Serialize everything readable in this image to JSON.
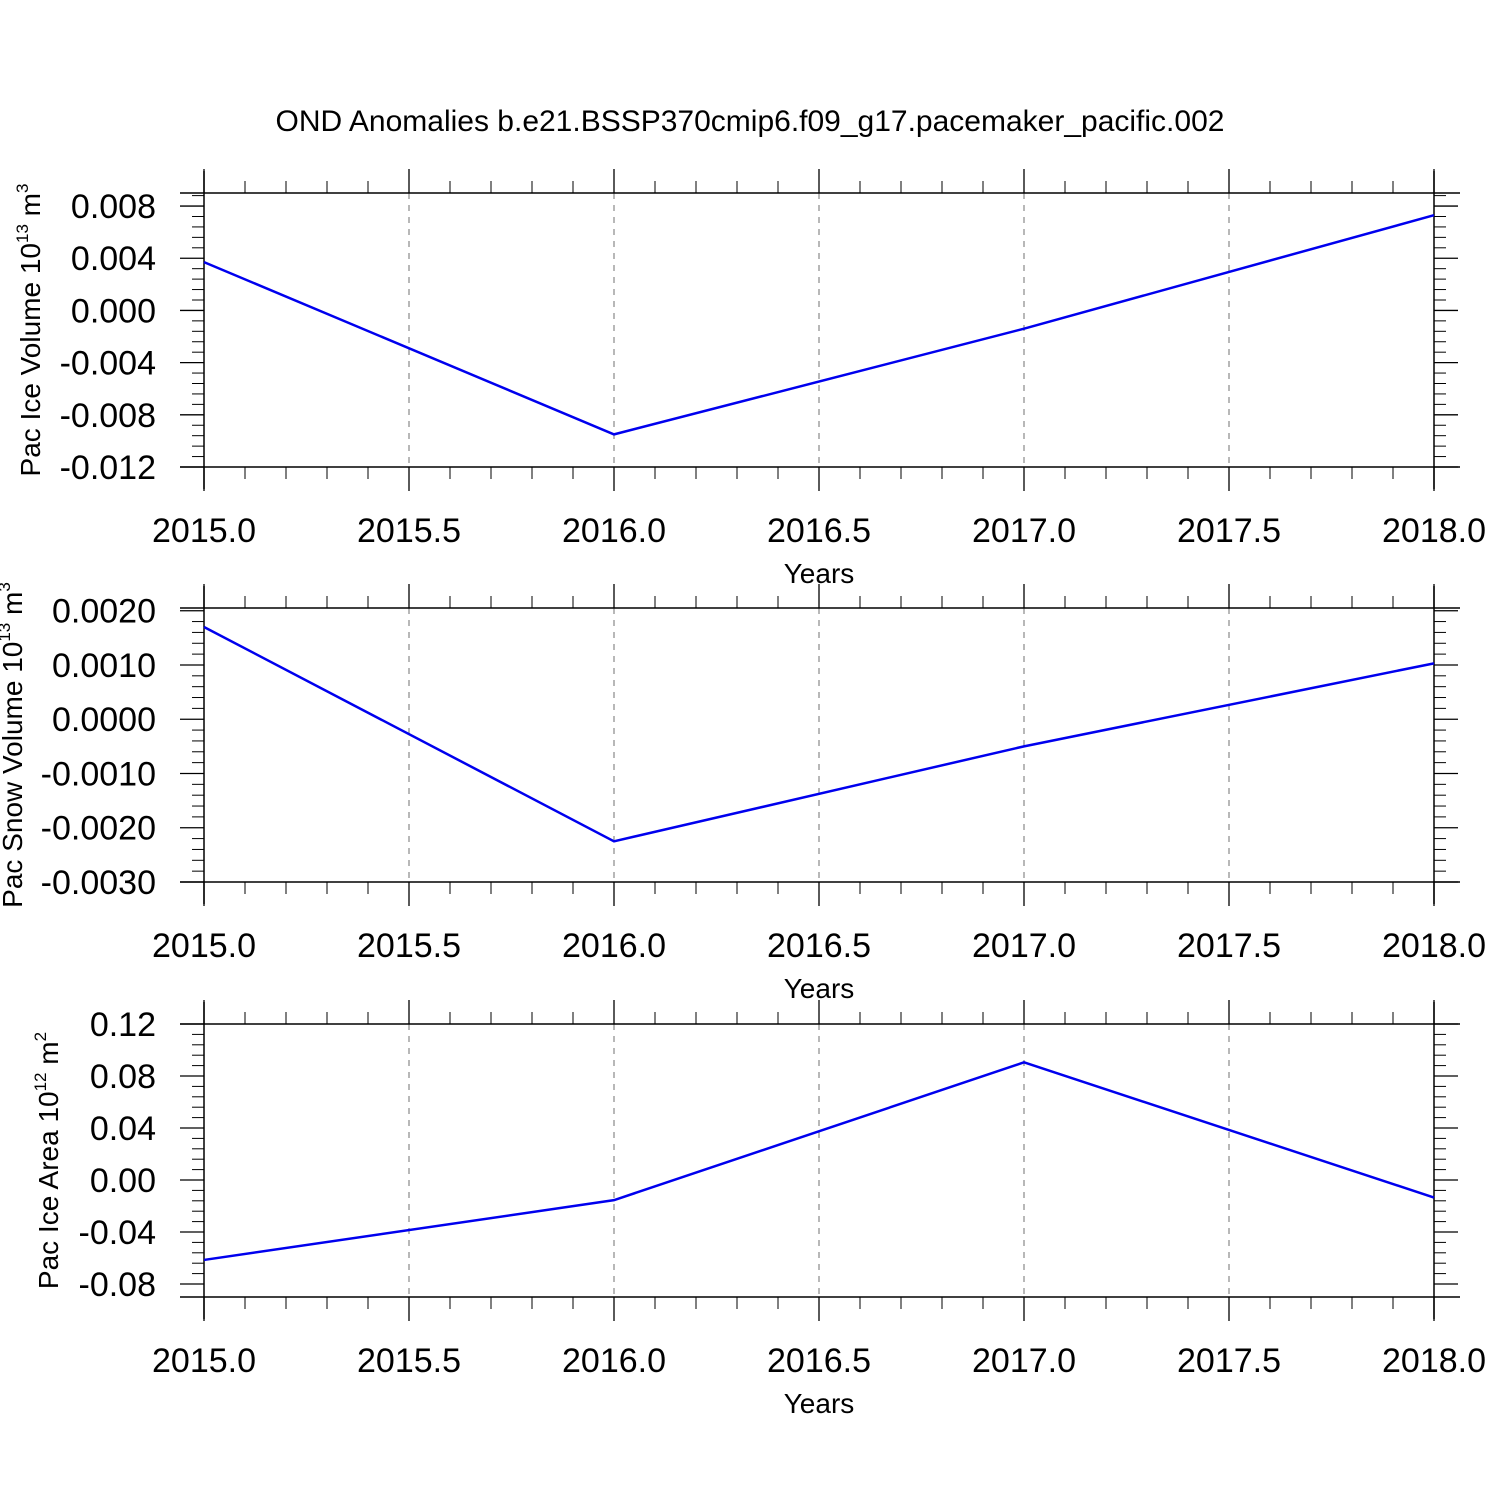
{
  "title": "OND Anomalies b.e21.BSSP370cmip6.f09_g17.pacemaker_pacific.002",
  "line_color": "#0000ee",
  "chart_data": [
    {
      "type": "line",
      "ylabel": {
        "text": "Pac Ice Volume 10",
        "exp": "13",
        "unit": " m",
        "unit_exp": "3"
      },
      "xlabel": "Years",
      "x": [
        2015,
        2016,
        2017,
        2018
      ],
      "series": [
        {
          "values": [
            0.0037,
            -0.0095,
            -0.0014,
            0.0073
          ]
        }
      ],
      "xlim": [
        2015.0,
        2018.0
      ],
      "ylim": [
        -0.012,
        0.009
      ],
      "xticks": [
        "2015.0",
        "2015.5",
        "2016.0",
        "2016.5",
        "2017.0",
        "2017.5",
        "2018.0"
      ],
      "yticks": [
        "0.008",
        "0.004",
        "0.000",
        "-0.004",
        "-0.008",
        "-0.012"
      ],
      "ytick_values": [
        0.008,
        0.004,
        0.0,
        -0.004,
        -0.008,
        -0.012
      ],
      "grid": "vertical dashed"
    },
    {
      "type": "line",
      "ylabel": {
        "text": "Pac Snow Volume 10",
        "exp": "13",
        "unit": " m",
        "unit_exp": "3"
      },
      "xlabel": "Years",
      "x": [
        2015,
        2016,
        2017,
        2018
      ],
      "series": [
        {
          "values": [
            0.0017,
            -0.00225,
            -0.0005,
            0.00103
          ]
        }
      ],
      "xlim": [
        2015.0,
        2018.0
      ],
      "ylim": [
        -0.003,
        0.00205
      ],
      "xticks": [
        "2015.0",
        "2015.5",
        "2016.0",
        "2016.5",
        "2017.0",
        "2017.5",
        "2018.0"
      ],
      "yticks": [
        "0.0020",
        "0.0010",
        "0.0000",
        "-0.0010",
        "-0.0020",
        "-0.0030"
      ],
      "ytick_values": [
        0.002,
        0.001,
        0.0,
        -0.001,
        -0.002,
        -0.003
      ],
      "grid": "vertical dashed"
    },
    {
      "type": "line",
      "ylabel": {
        "text": "Pac Ice Area 10",
        "exp": "12",
        "unit": " m",
        "unit_exp": "2"
      },
      "xlabel": "Years",
      "x": [
        2015,
        2016,
        2017,
        2018
      ],
      "series": [
        {
          "values": [
            -0.0615,
            -0.0155,
            0.0905,
            -0.0135
          ]
        }
      ],
      "xlim": [
        2015.0,
        2018.0
      ],
      "ylim": [
        -0.09,
        0.12
      ],
      "xticks": [
        "2015.0",
        "2015.5",
        "2016.0",
        "2016.5",
        "2017.0",
        "2017.5",
        "2018.0"
      ],
      "yticks": [
        "0.12",
        "0.08",
        "0.04",
        "0.00",
        "-0.04",
        "-0.08"
      ],
      "ytick_values": [
        0.12,
        0.08,
        0.04,
        0.0,
        -0.04,
        -0.08
      ],
      "grid": "vertical dashed"
    }
  ]
}
